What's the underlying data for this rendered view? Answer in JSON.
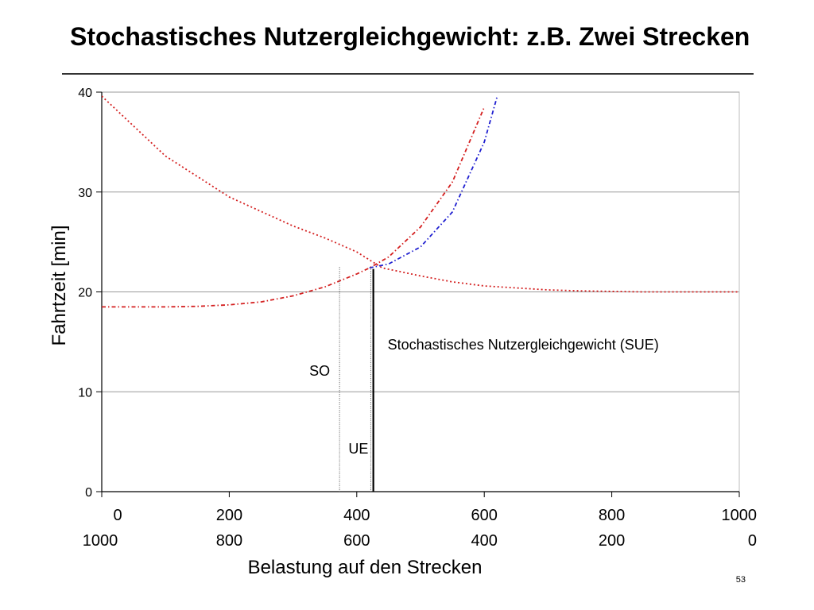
{
  "slide": {
    "title": "Stochastisches Nutzergleichgewicht: z.B. Zwei Strecken",
    "page_number": "53"
  },
  "chart_data": {
    "type": "line",
    "title": "",
    "xlabel": "Belastung auf den Strecken",
    "ylabel": "Fahrtzeit [min]",
    "xlim": [
      0,
      1000
    ],
    "ylim": [
      0,
      40
    ],
    "grid": true,
    "x_ticks_top": [
      "0",
      "200",
      "400",
      "600",
      "800",
      "1000"
    ],
    "x_ticks_bottom": [
      "1000",
      "800",
      "600",
      "400",
      "200",
      "0"
    ],
    "y_ticks": [
      "0",
      "10",
      "20",
      "30",
      "40"
    ],
    "series": [
      {
        "color": "#d42020",
        "style": "dotted",
        "x": [
          0,
          100,
          200,
          300,
          350,
          400,
          440,
          500,
          550,
          600,
          650,
          700,
          750,
          800,
          850,
          900,
          950,
          1000
        ],
        "y": [
          39.6,
          33.6,
          29.5,
          26.6,
          25.4,
          24.0,
          22.4,
          21.6,
          21.0,
          20.6,
          20.4,
          20.2,
          20.1,
          20.05,
          20.0,
          20.0,
          20.0,
          20.0
        ]
      },
      {
        "color": "#d42020",
        "style": "dashdot",
        "x": [
          0,
          50,
          100,
          150,
          200,
          250,
          300,
          350,
          400,
          420,
          450,
          500,
          550,
          600
        ],
        "y": [
          18.5,
          18.5,
          18.5,
          18.55,
          18.7,
          19.0,
          19.6,
          20.5,
          21.8,
          22.4,
          23.5,
          26.5,
          31.0,
          38.5
        ]
      },
      {
        "color": "#1f1fd0",
        "style": "dashdot",
        "x": [
          420,
          450,
          500,
          550,
          600,
          620
        ],
        "y": [
          22.4,
          22.8,
          24.5,
          28.0,
          35.0,
          39.5
        ]
      }
    ],
    "vertical_lines": [
      {
        "x": 373,
        "y_top": 22.5,
        "label": "SO",
        "style": "dotted"
      },
      {
        "x": 422,
        "y_top": 22.5,
        "label": "UE",
        "style": "dotted"
      },
      {
        "x": 426,
        "y_top": 22.3,
        "label": "Stochastisches Nutzergleichgewicht (SUE)",
        "style": "solid"
      }
    ]
  }
}
